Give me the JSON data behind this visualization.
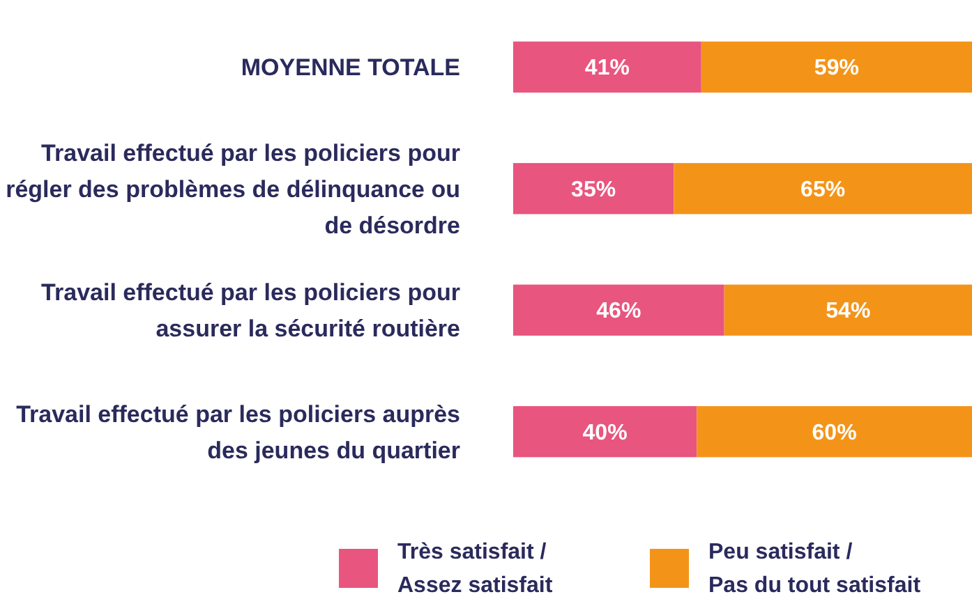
{
  "chart_data": {
    "type": "bar",
    "orientation": "horizontal",
    "stacked": true,
    "legend": "bottom",
    "categories": [
      "MOYENNE TOTALE",
      "Travail effectué par les policiers pour régler des problèmes de délinquance ou de désordre",
      "Travail effectué par les policiers pour assurer la sécurité routière",
      "Travail effectué par les policiers auprès des jeunes du quartier"
    ],
    "series": [
      {
        "name": "Très satisfait / Assez satisfait",
        "color": "#e8557f",
        "values": [
          41,
          35,
          46,
          40
        ],
        "value_labels": [
          "41%",
          "35%",
          "46%",
          "40%"
        ]
      },
      {
        "name": "Peu satisfait / Pas du tout satisfait",
        "color": "#f39419",
        "values": [
          59,
          65,
          54,
          60
        ],
        "value_labels": [
          "59%",
          "65%",
          "54%",
          "60%"
        ]
      }
    ]
  }
}
